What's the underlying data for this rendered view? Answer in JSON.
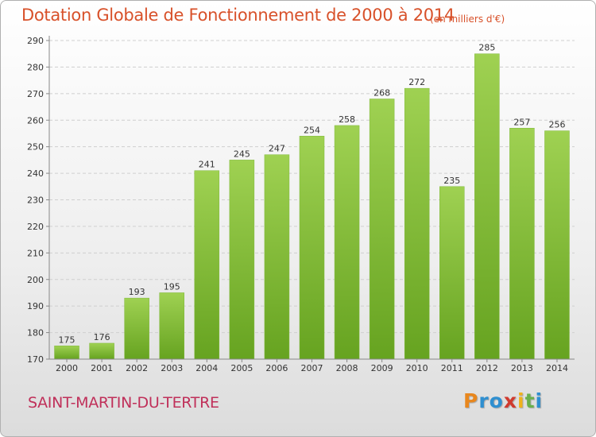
{
  "header": {
    "title": "Dotation Globale de Fonctionnement de 2000 à 2014",
    "unit": "(en milliers d'€)"
  },
  "footer": {
    "commune": "SAINT-MARTIN-DU-TERTRE",
    "logo_letters": [
      "P",
      "r",
      "o",
      "x",
      "i",
      "t",
      "i"
    ],
    "logo_colors": [
      "#e8871e",
      "#2f8fd0",
      "#2f8fd0",
      "#d03a2e",
      "#f0b21c",
      "#6ab04c",
      "#2f8fd0"
    ]
  },
  "chart_data": {
    "type": "bar",
    "categories": [
      "2000",
      "2001",
      "2002",
      "2003",
      "2004",
      "2005",
      "2006",
      "2007",
      "2008",
      "2009",
      "2010",
      "2011",
      "2012",
      "2013",
      "2014"
    ],
    "values": [
      175,
      176,
      193,
      195,
      241,
      245,
      247,
      254,
      258,
      268,
      272,
      235,
      285,
      257,
      256
    ],
    "yticks": [
      170,
      180,
      190,
      200,
      210,
      220,
      230,
      240,
      250,
      260,
      270,
      280,
      290
    ],
    "ylim": [
      170,
      290
    ],
    "grid": true,
    "bar_color": "#8cc63f",
    "bar_color_dark": "#5e9a1c"
  }
}
